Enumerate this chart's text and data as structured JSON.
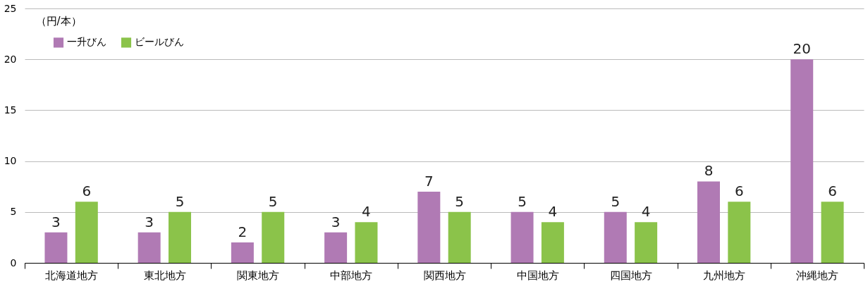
{
  "chart_data": {
    "type": "bar",
    "ylabel": "（円/本）",
    "categories": [
      "北海道地方",
      "東北地方",
      "関東地方",
      "中部地方",
      "関西地方",
      "中国地方",
      "四国地方",
      "九州地方",
      "沖縄地方"
    ],
    "series": [
      {
        "name": "一升びん",
        "color": "#b07ab4",
        "values": [
          3,
          3,
          2,
          3,
          7,
          5,
          5,
          8,
          20
        ]
      },
      {
        "name": "ビールびん",
        "color": "#8bc34a",
        "values": [
          6,
          5,
          5,
          4,
          5,
          4,
          4,
          6,
          6
        ]
      }
    ],
    "ylim": [
      0,
      25
    ],
    "yticks": [
      0,
      5,
      10,
      15,
      20,
      25
    ],
    "grid": "y",
    "legend": "top left",
    "data_labels": true
  }
}
